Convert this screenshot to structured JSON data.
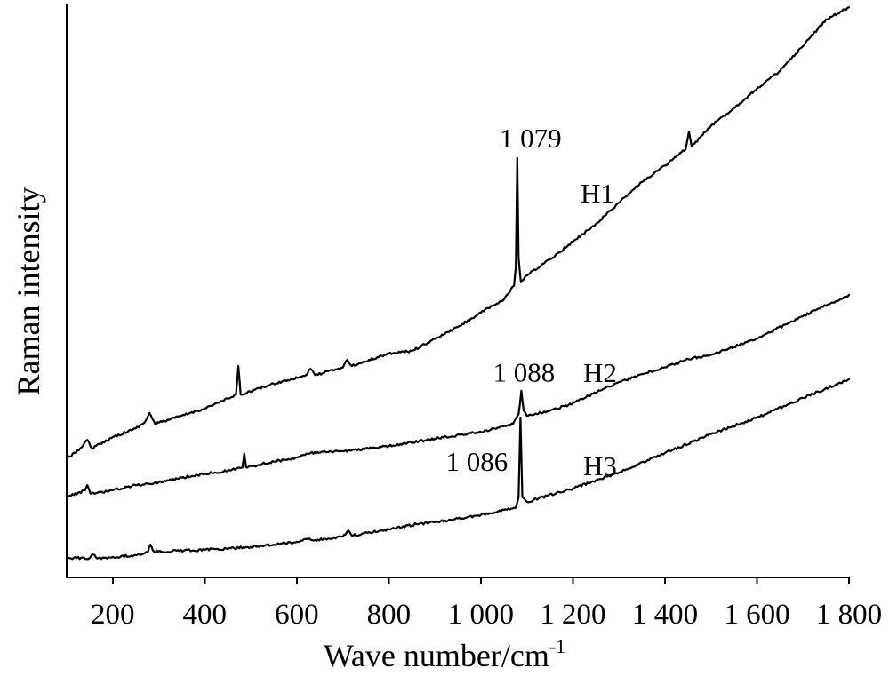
{
  "chart_data": {
    "type": "line",
    "title": "",
    "xlabel": "Wave number/cm",
    "xlabel_superscript": "-1",
    "ylabel": "Raman intensity",
    "xlim": [
      100,
      1800
    ],
    "ylim": [
      0,
      100
    ],
    "y_units": "arbitrary",
    "grid": false,
    "legend": "none",
    "line_color": "#000000",
    "x_ticks": [
      200,
      400,
      600,
      800,
      1000,
      1200,
      1400,
      1600,
      1800
    ],
    "x_tick_labels": [
      "200",
      "400",
      "600",
      "800",
      "1 000",
      "1 200",
      "1 400",
      "1 600",
      "1 800"
    ],
    "series": [
      {
        "name": "H1",
        "points": [
          [
            100,
            20.9
          ],
          [
            120,
            21.7
          ],
          [
            145,
            24.0
          ],
          [
            155,
            22.5
          ],
          [
            200,
            24.5
          ],
          [
            250,
            26.0
          ],
          [
            270,
            27.1
          ],
          [
            280,
            28.7
          ],
          [
            292,
            26.8
          ],
          [
            350,
            28.2
          ],
          [
            400,
            29.5
          ],
          [
            460,
            31.5
          ],
          [
            468,
            31.9
          ],
          [
            473,
            36.9
          ],
          [
            478,
            31.9
          ],
          [
            550,
            33.8
          ],
          [
            620,
            35.3
          ],
          [
            630,
            36.4
          ],
          [
            640,
            35.3
          ],
          [
            700,
            36.6
          ],
          [
            710,
            38.0
          ],
          [
            720,
            36.9
          ],
          [
            800,
            39.1
          ],
          [
            850,
            39.5
          ],
          [
            900,
            41.6
          ],
          [
            950,
            43.7
          ],
          [
            1000,
            46.2
          ],
          [
            1050,
            48.5
          ],
          [
            1072,
            50.9
          ],
          [
            1076,
            54.3
          ],
          [
            1079,
            73.2
          ],
          [
            1082,
            55.8
          ],
          [
            1087,
            51.5
          ],
          [
            1100,
            52.7
          ],
          [
            1150,
            55.5
          ],
          [
            1200,
            58.6
          ],
          [
            1250,
            61.7
          ],
          [
            1300,
            65.4
          ],
          [
            1350,
            69.0
          ],
          [
            1400,
            71.9
          ],
          [
            1445,
            74.7
          ],
          [
            1452,
            77.8
          ],
          [
            1458,
            75.2
          ],
          [
            1500,
            78.8
          ],
          [
            1550,
            81.9
          ],
          [
            1600,
            85.3
          ],
          [
            1650,
            88.4
          ],
          [
            1700,
            92.7
          ],
          [
            1750,
            97.4
          ],
          [
            1800,
            99.5
          ]
        ]
      },
      {
        "name": "H2",
        "points": [
          [
            100,
            14.0
          ],
          [
            140,
            15.2
          ],
          [
            145,
            16.1
          ],
          [
            152,
            14.6
          ],
          [
            200,
            15.2
          ],
          [
            250,
            16.1
          ],
          [
            300,
            16.6
          ],
          [
            350,
            17.4
          ],
          [
            400,
            18.1
          ],
          [
            450,
            18.6
          ],
          [
            482,
            19.2
          ],
          [
            486,
            21.6
          ],
          [
            490,
            19.2
          ],
          [
            550,
            20.2
          ],
          [
            600,
            20.9
          ],
          [
            630,
            21.7
          ],
          [
            700,
            22.0
          ],
          [
            800,
            22.9
          ],
          [
            900,
            24.2
          ],
          [
            1000,
            25.4
          ],
          [
            1070,
            26.8
          ],
          [
            1082,
            28.5
          ],
          [
            1088,
            32.6
          ],
          [
            1093,
            29.1
          ],
          [
            1100,
            28.2
          ],
          [
            1150,
            29.1
          ],
          [
            1200,
            30.4
          ],
          [
            1300,
            34.1
          ],
          [
            1400,
            36.7
          ],
          [
            1460,
            38.3
          ],
          [
            1500,
            38.8
          ],
          [
            1600,
            41.7
          ],
          [
            1700,
            45.6
          ],
          [
            1800,
            49.3
          ]
        ]
      },
      {
        "name": "H3",
        "points": [
          [
            100,
            3.4
          ],
          [
            150,
            3.4
          ],
          [
            158,
            4.0
          ],
          [
            166,
            3.3
          ],
          [
            250,
            3.9
          ],
          [
            276,
            4.3
          ],
          [
            282,
            5.7
          ],
          [
            290,
            4.5
          ],
          [
            400,
            4.8
          ],
          [
            500,
            5.3
          ],
          [
            600,
            6.2
          ],
          [
            625,
            6.8
          ],
          [
            640,
            6.5
          ],
          [
            700,
            7.1
          ],
          [
            712,
            8.2
          ],
          [
            720,
            7.3
          ],
          [
            800,
            8.4
          ],
          [
            860,
            9.3
          ],
          [
            900,
            9.6
          ],
          [
            1000,
            10.9
          ],
          [
            1075,
            12.1
          ],
          [
            1082,
            14.0
          ],
          [
            1086,
            27.9
          ],
          [
            1090,
            14.0
          ],
          [
            1100,
            13.2
          ],
          [
            1200,
            15.5
          ],
          [
            1300,
            18.3
          ],
          [
            1400,
            21.7
          ],
          [
            1500,
            25.0
          ],
          [
            1600,
            27.9
          ],
          [
            1700,
            31.3
          ],
          [
            1800,
            34.6
          ]
        ]
      }
    ],
    "annotations": [
      {
        "text": "1 079",
        "x": 1079
      },
      {
        "text": "1 088",
        "x": 1088
      },
      {
        "text": "1 086",
        "x": 1086
      }
    ]
  }
}
